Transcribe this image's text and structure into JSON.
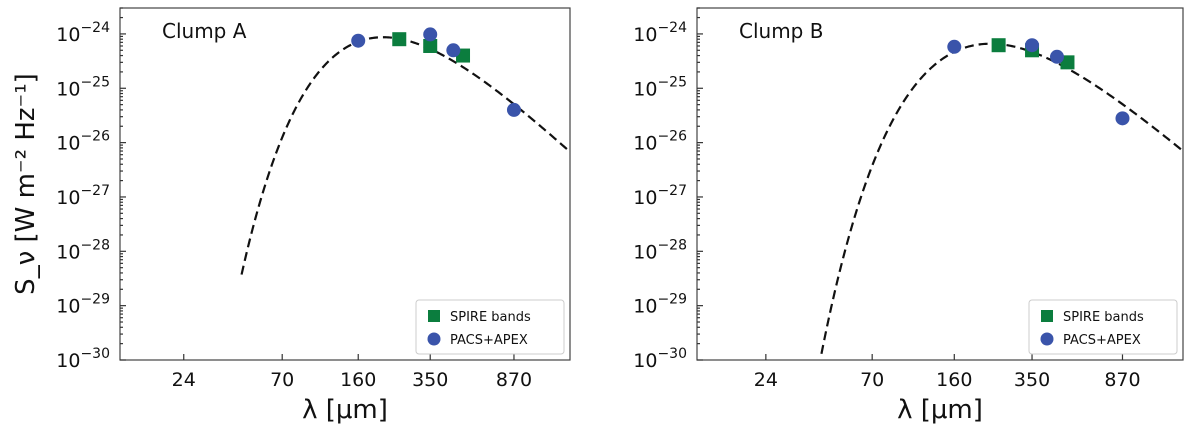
{
  "colors": {
    "spire": "#0b7d3e",
    "pacs": "#3a54aa",
    "model": "#111111"
  },
  "chart_data": [
    {
      "type": "scatter",
      "title": "Clump A",
      "xlabel": "λ [μm]",
      "ylabel": "S_ν [W m⁻² Hz⁻¹]",
      "xscale": "log",
      "yscale": "log",
      "xlim": [
        12,
        1600
      ],
      "ylim": [
        1e-30,
        3e-24
      ],
      "xticks": [
        24,
        70,
        160,
        350,
        870
      ],
      "yticks": [
        {
          "exp": -30,
          "label": "10",
          "sup": "−30"
        },
        {
          "exp": -29,
          "label": "10",
          "sup": "−29"
        },
        {
          "exp": -28,
          "label": "10",
          "sup": "−28"
        },
        {
          "exp": -27,
          "label": "10",
          "sup": "−27"
        },
        {
          "exp": -26,
          "label": "10",
          "sup": "−26"
        },
        {
          "exp": -25,
          "label": "10",
          "sup": "−25"
        },
        {
          "exp": -24,
          "label": "10",
          "sup": "−24"
        }
      ],
      "legend": {
        "position": "lower-right",
        "entries": [
          "SPIRE bands",
          "PACS+APEX"
        ]
      },
      "series": [
        {
          "name": "SPIRE bands",
          "marker": "square",
          "x": [
            250,
            350,
            500
          ],
          "y": [
            8e-25,
            6e-25,
            4e-25
          ]
        },
        {
          "name": "PACS+APEX",
          "marker": "circle",
          "x": [
            160,
            350,
            450,
            870
          ],
          "y": [
            7.5e-25,
            9.8e-25,
            5e-25,
            4e-26
          ]
        },
        {
          "name": "",
          "marker": "dashed-line",
          "model": "greybody",
          "peak_lambda": 210,
          "peak_flux": 8.7e-25,
          "beta": 1.8,
          "x_range": [
            45,
            1600
          ]
        }
      ]
    },
    {
      "type": "scatter",
      "title": "Clump B",
      "xlabel": "λ [μm]",
      "ylabel": "",
      "xscale": "log",
      "yscale": "log",
      "xlim": [
        12,
        1600
      ],
      "ylim": [
        1e-30,
        3e-24
      ],
      "xticks": [
        24,
        70,
        160,
        350,
        870
      ],
      "yticks": [
        {
          "exp": -30,
          "label": "10",
          "sup": "−30"
        },
        {
          "exp": -29,
          "label": "10",
          "sup": "−29"
        },
        {
          "exp": -28,
          "label": "10",
          "sup": "−28"
        },
        {
          "exp": -27,
          "label": "10",
          "sup": "−27"
        },
        {
          "exp": -26,
          "label": "10",
          "sup": "−26"
        },
        {
          "exp": -25,
          "label": "10",
          "sup": "−25"
        },
        {
          "exp": -24,
          "label": "10",
          "sup": "−24"
        }
      ],
      "legend": {
        "position": "lower-right",
        "entries": [
          "SPIRE bands",
          "PACS+APEX"
        ]
      },
      "series": [
        {
          "name": "SPIRE bands",
          "marker": "square",
          "x": [
            250,
            350,
            500
          ],
          "y": [
            6.2e-25,
            5e-25,
            3e-25
          ]
        },
        {
          "name": "PACS+APEX",
          "marker": "circle",
          "x": [
            160,
            350,
            450,
            870
          ],
          "y": [
            5.8e-25,
            6.2e-25,
            3.8e-25,
            2.8e-26
          ]
        },
        {
          "name": "",
          "marker": "dashed-line",
          "model": "greybody",
          "peak_lambda": 230,
          "peak_flux": 6.6e-25,
          "beta": 1.8,
          "x_range": [
            42,
            1600
          ]
        }
      ]
    }
  ]
}
